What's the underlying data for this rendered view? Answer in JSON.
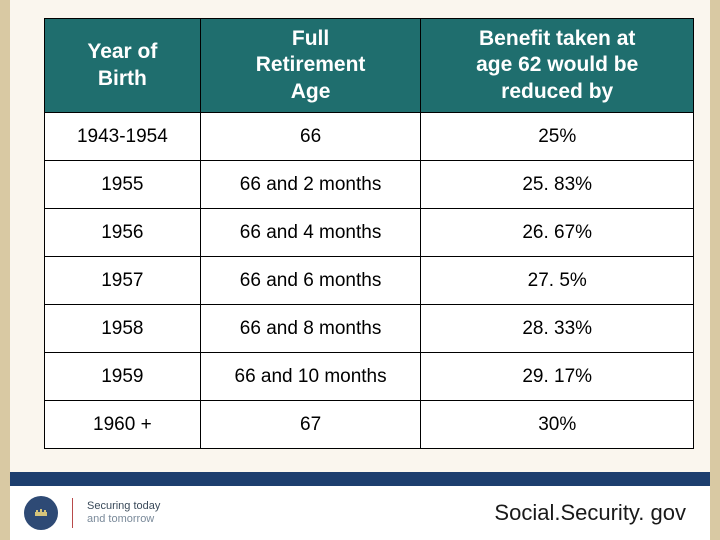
{
  "table": {
    "type": "table",
    "header_bg": "#1f6e6e",
    "header_fg": "#ffffff",
    "cell_bg": "#ffffff",
    "border_color": "#000000",
    "header_fontsize": 21,
    "cell_fontsize": 19,
    "columns": [
      {
        "label": "Year of\nBirth",
        "width_pct": 24
      },
      {
        "label": "Full\nRetirement\nAge",
        "width_pct": 34
      },
      {
        "label": "Benefit taken at\nage 62 would be\nreduced by",
        "width_pct": 42
      }
    ],
    "rows": [
      [
        "1943-1954",
        "66",
        "25%"
      ],
      [
        "1955",
        "66 and 2 months",
        "25. 83%"
      ],
      [
        "1956",
        "66 and 4 months",
        "26. 67%"
      ],
      [
        "1957",
        "66 and 6 months",
        "27. 5%"
      ],
      [
        "1958",
        "66 and 8 months",
        "28. 33%"
      ],
      [
        "1959",
        "66 and 10 months",
        "29. 17%"
      ],
      [
        "1960 +",
        "67",
        "30%"
      ]
    ]
  },
  "layout": {
    "page_bg": "#faf6ee",
    "side_border_color": "#d9c9a3",
    "bottom_bar_color": "#1d3e6e"
  },
  "footer": {
    "seal_alt": "ssa-seal",
    "tagline_line1": "Securing today",
    "tagline_line2": "and tomorrow",
    "site": "Social.Security. gov"
  }
}
